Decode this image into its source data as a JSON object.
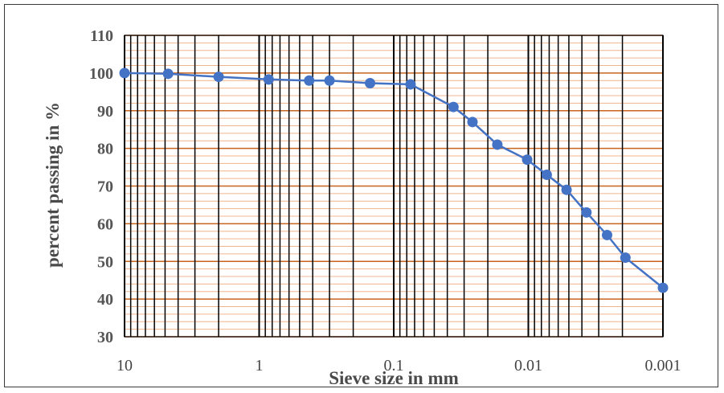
{
  "chart_data": {
    "type": "scatter",
    "xlabel": "Sieve size in mm",
    "ylabel": "percent passing in %",
    "x_scale": "log",
    "x_reversed": true,
    "xlim": [
      10,
      0.001
    ],
    "ylim": [
      30,
      110
    ],
    "y_ticks": [
      30,
      40,
      50,
      60,
      70,
      80,
      90,
      100,
      110
    ],
    "x_tick_labels": [
      {
        "value": 10,
        "label": "10"
      },
      {
        "value": 1,
        "label": "1"
      },
      {
        "value": 0.1,
        "label": "0.1"
      },
      {
        "value": 0.01,
        "label": "0.01"
      },
      {
        "value": 0.001,
        "label": "0.001"
      }
    ],
    "grid": true,
    "series": [
      {
        "points": [
          {
            "x": 10,
            "y": 100
          },
          {
            "x": 4.75,
            "y": 99.8
          },
          {
            "x": 2,
            "y": 99
          },
          {
            "x": 0.85,
            "y": 98.3
          },
          {
            "x": 0.425,
            "y": 98
          },
          {
            "x": 0.3,
            "y": 98
          },
          {
            "x": 0.15,
            "y": 97.3
          },
          {
            "x": 0.075,
            "y": 97
          },
          {
            "x": 0.036,
            "y": 91
          },
          {
            "x": 0.026,
            "y": 87
          },
          {
            "x": 0.017,
            "y": 81
          },
          {
            "x": 0.0102,
            "y": 77
          },
          {
            "x": 0.0073,
            "y": 73
          },
          {
            "x": 0.0052,
            "y": 69
          },
          {
            "x": 0.0037,
            "y": 63
          },
          {
            "x": 0.0026,
            "y": 57
          },
          {
            "x": 0.0019,
            "y": 51
          },
          {
            "x": 0.001,
            "y": 43
          }
        ]
      }
    ]
  },
  "colors": {
    "major_grid": "#c8641e",
    "minor_grid": "#f0b48c",
    "vertical_grid": "#000000",
    "series": "#4472c4"
  }
}
